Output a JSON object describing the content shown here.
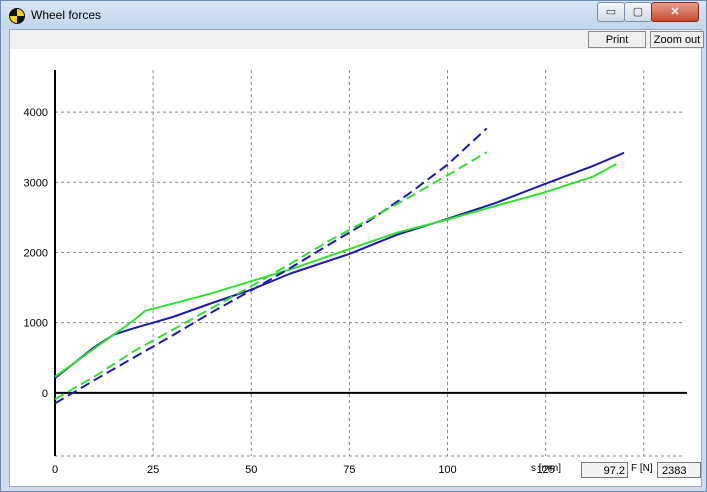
{
  "window": {
    "title": "Wheel forces",
    "app_icon": "crash-test-icon",
    "controls": {
      "minimize": "▭",
      "maximize": "▢",
      "close": "✕"
    }
  },
  "toolbar": {
    "print_label": "Print",
    "zoom_out_label": "Zoom out"
  },
  "readout": {
    "s_label": "s [mm]",
    "s_value": "97.2",
    "f_label": "F [N]",
    "f_value": "2383"
  },
  "chart_data": {
    "type": "line",
    "title": "",
    "xlabel": "s [mm]",
    "ylabel": "F [N]",
    "xlim": [
      0,
      160
    ],
    "ylim": [
      -900,
      4600
    ],
    "x_ticks": [
      "0",
      "25",
      "50",
      "75",
      "100",
      "125"
    ],
    "y_ticks": [
      "4000",
      "3000",
      "2000",
      "1000",
      "0"
    ],
    "grid": true,
    "series": [
      {
        "color": "#1c1ca8",
        "style": "solid",
        "x": [
          0,
          5,
          10,
          15,
          20,
          25,
          30,
          40,
          50,
          60,
          75,
          87,
          100,
          112,
          125,
          137,
          145
        ],
        "y": [
          210,
          430,
          650,
          830,
          920,
          1000,
          1080,
          1280,
          1470,
          1700,
          1980,
          2250,
          2480,
          2700,
          2980,
          3230,
          3420
        ]
      },
      {
        "color": "#33e033",
        "style": "solid",
        "x": [
          0,
          5,
          10,
          15,
          20,
          23,
          30,
          40,
          50,
          60,
          75,
          87,
          100,
          112,
          125,
          137,
          143
        ],
        "y": [
          230,
          430,
          630,
          830,
          1030,
          1170,
          1270,
          1420,
          1590,
          1760,
          2050,
          2280,
          2470,
          2660,
          2860,
          3080,
          3260
        ]
      },
      {
        "color": "#1c1ca8",
        "style": "dashed",
        "x": [
          0,
          10,
          20,
          30,
          40,
          50,
          60,
          70,
          80,
          90,
          100,
          110
        ],
        "y": [
          -150,
          180,
          500,
          820,
          1150,
          1460,
          1780,
          2120,
          2450,
          2830,
          3250,
          3770
        ]
      },
      {
        "color": "#33e033",
        "style": "dashed",
        "x": [
          0,
          10,
          20,
          30,
          40,
          50,
          60,
          70,
          80,
          90,
          100,
          110
        ],
        "y": [
          -90,
          230,
          590,
          900,
          1210,
          1520,
          1840,
          2170,
          2470,
          2780,
          3100,
          3430
        ]
      }
    ]
  }
}
